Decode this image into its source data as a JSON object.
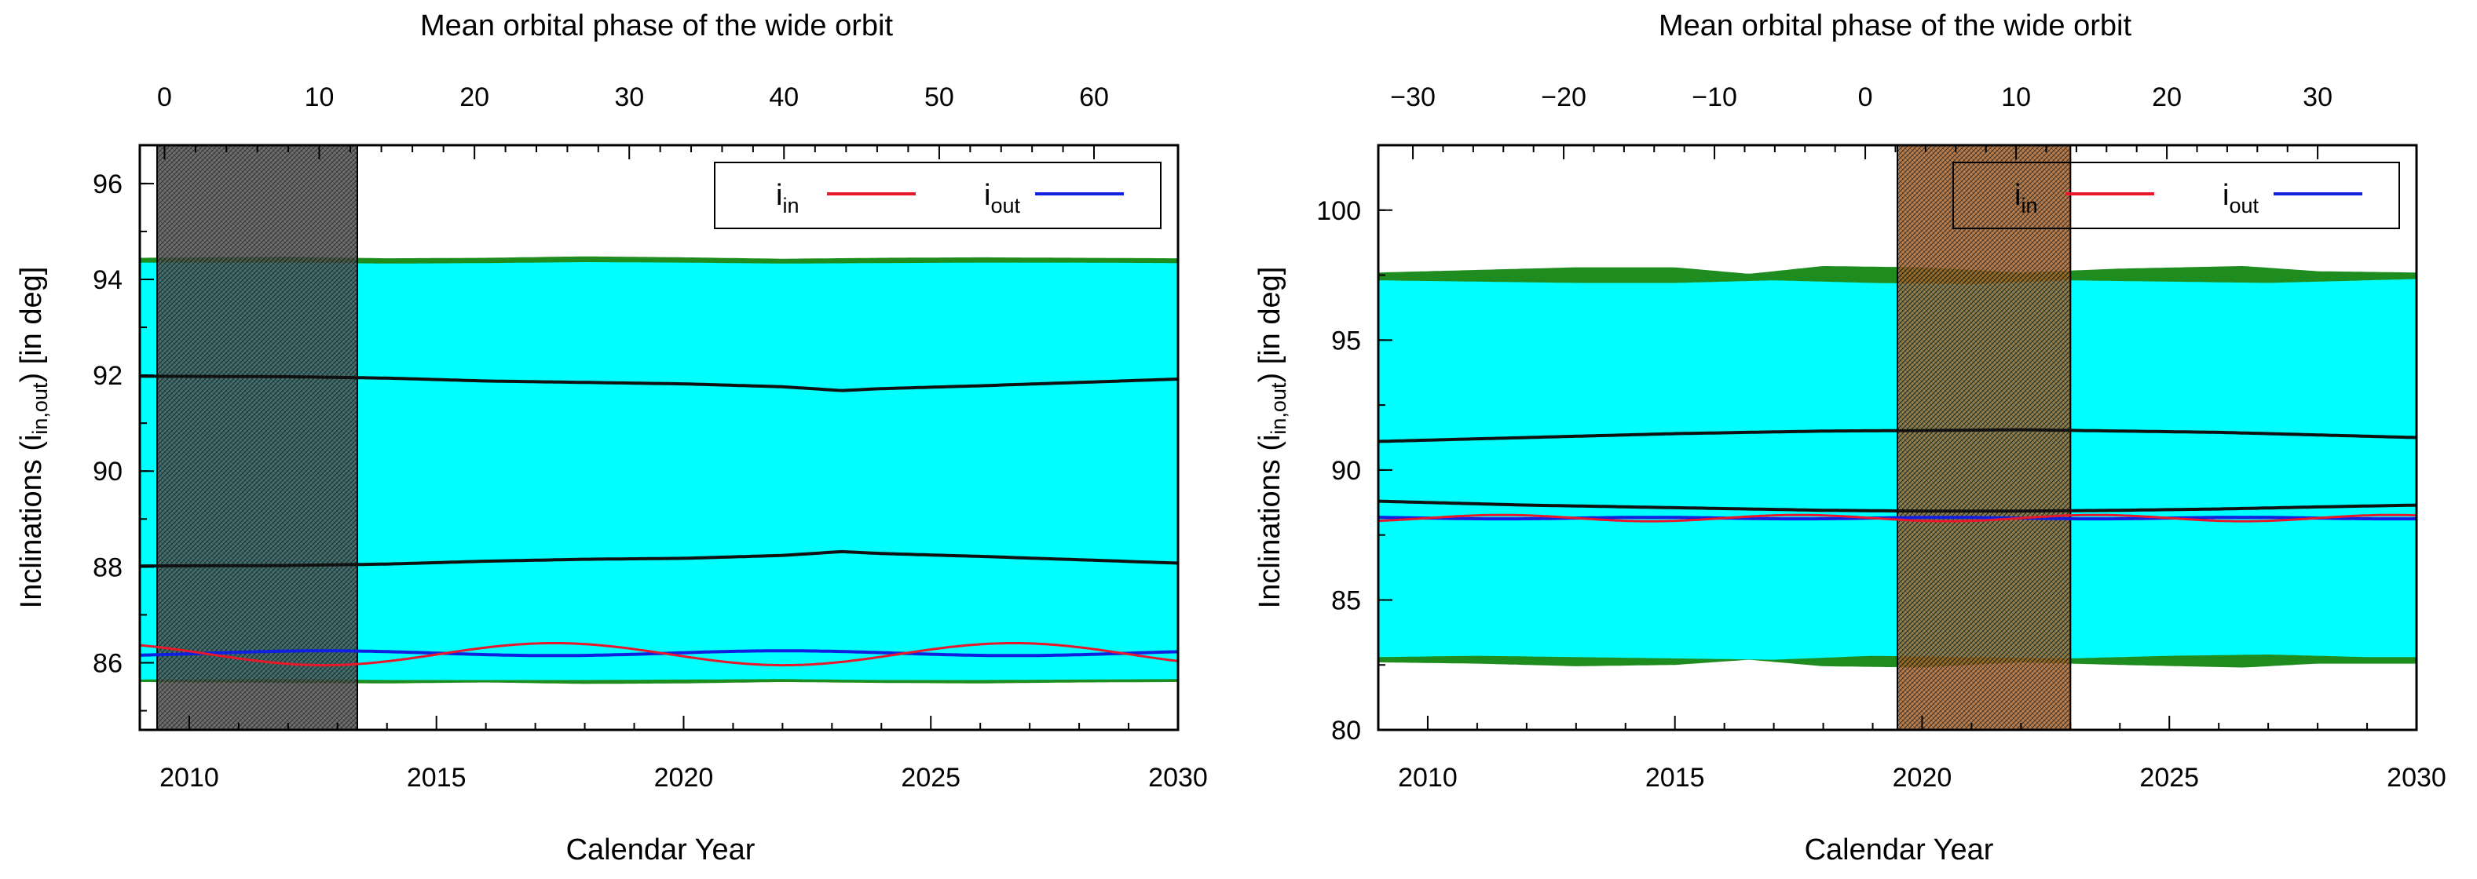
{
  "chart_data": [
    {
      "type": "area",
      "panel": "left",
      "top_axis_label": "Mean orbital phase of the wide orbit",
      "xlabel": "Calendar Year",
      "ylabel_main": "Inclinations (i",
      "ylabel_sub": "in,out",
      "ylabel_tail": ") [in deg]",
      "xlim": [
        2009,
        2030
      ],
      "ylim": [
        84.6,
        96.8
      ],
      "x_ticks": [
        2010,
        2015,
        2020,
        2025,
        2030
      ],
      "x_tick_labels": [
        "2010",
        "2015",
        "2020",
        "2025",
        "2030"
      ],
      "y_ticks": [
        86,
        88,
        90,
        92,
        94,
        96
      ],
      "y_tick_labels": [
        "86",
        "88",
        "90",
        "92",
        "94",
        "96"
      ],
      "top_ticks": [
        {
          "year": 2009.5,
          "label": "0"
        },
        {
          "year": 2012.63,
          "label": "10"
        },
        {
          "year": 2015.77,
          "label": "20"
        },
        {
          "year": 2018.9,
          "label": "30"
        },
        {
          "year": 2022.03,
          "label": "40"
        },
        {
          "year": 2025.17,
          "label": "50"
        },
        {
          "year": 2028.3,
          "label": "60"
        }
      ],
      "observed_span": [
        2009.35,
        2013.4
      ],
      "shade_color": "#555555",
      "legend": [
        {
          "main": "i",
          "sub": "in",
          "color": "#e8182a"
        },
        {
          "main": "i",
          "sub": "out",
          "color": "#1020e0"
        }
      ],
      "colors": {
        "band": "#00ffff",
        "band_edge": "#1e8c1e",
        "bounds": "#111111",
        "i_in": "#e8182a",
        "i_out": "#1020e0"
      },
      "series": [
        {
          "name": "band_upper",
          "x": [
            2009,
            2012,
            2014,
            2016,
            2018,
            2020,
            2022,
            2024,
            2026,
            2028,
            2030
          ],
          "values": [
            94.35,
            94.35,
            94.33,
            94.34,
            94.36,
            94.35,
            94.33,
            94.34,
            94.35,
            94.35,
            94.34
          ]
        },
        {
          "name": "band_upper_edge",
          "x": [
            2009,
            2012,
            2014,
            2016,
            2018,
            2020,
            2022,
            2024,
            2026,
            2028,
            2030
          ],
          "values": [
            94.45,
            94.47,
            94.44,
            94.45,
            94.48,
            94.46,
            94.43,
            94.45,
            94.46,
            94.45,
            94.44
          ]
        },
        {
          "name": "band_lower",
          "x": [
            2009,
            2012,
            2014,
            2016,
            2018,
            2020,
            2022,
            2024,
            2026,
            2028,
            2030
          ],
          "values": [
            85.65,
            85.66,
            85.64,
            85.64,
            85.64,
            85.65,
            85.66,
            85.64,
            85.64,
            85.65,
            85.66
          ]
        },
        {
          "name": "band_lower_edge",
          "x": [
            2009,
            2012,
            2014,
            2016,
            2018,
            2020,
            2022,
            2024,
            2026,
            2028,
            2030
          ],
          "values": [
            85.6,
            85.58,
            85.57,
            85.59,
            85.56,
            85.57,
            85.6,
            85.58,
            85.57,
            85.59,
            85.6
          ]
        },
        {
          "name": "bound_upper",
          "x": [
            2009,
            2012,
            2014,
            2016,
            2018,
            2020,
            2022,
            2023.2,
            2024,
            2026,
            2028,
            2030
          ],
          "values": [
            91.98,
            91.97,
            91.94,
            91.88,
            91.85,
            91.82,
            91.76,
            91.68,
            91.72,
            91.78,
            91.85,
            91.92
          ]
        },
        {
          "name": "bound_lower",
          "x": [
            2009,
            2012,
            2014,
            2016,
            2018,
            2020,
            2022,
            2023.2,
            2024,
            2026,
            2028,
            2030
          ],
          "values": [
            88.02,
            88.03,
            88.06,
            88.12,
            88.16,
            88.18,
            88.24,
            88.32,
            88.28,
            88.22,
            88.15,
            88.08
          ]
        },
        {
          "name": "i_in",
          "formula": {
            "base": 86.18,
            "amp": 0.23,
            "period": 9.3,
            "phase_year": 2010.4,
            "sign": -1
          }
        },
        {
          "name": "i_out",
          "formula": {
            "base": 86.2,
            "amp": 0.05,
            "period": 9.3,
            "phase_year": 2010.4,
            "sign": 1
          }
        }
      ]
    },
    {
      "type": "area",
      "panel": "right",
      "top_axis_label": "Mean orbital phase of the wide orbit",
      "xlabel": "Calendar Year",
      "ylabel_main": "Inclinations (i",
      "ylabel_sub": "in,out",
      "ylabel_tail": ") [in deg]",
      "xlim": [
        2009,
        2030
      ],
      "ylim": [
        80,
        102.5
      ],
      "x_ticks": [
        2010,
        2015,
        2020,
        2025,
        2030
      ],
      "x_tick_labels": [
        "2010",
        "2015",
        "2020",
        "2025",
        "2030"
      ],
      "y_ticks": [
        80,
        85,
        90,
        95,
        100
      ],
      "y_tick_labels": [
        "80",
        "85",
        "90",
        "95",
        "100"
      ],
      "top_ticks": [
        {
          "year": 2009.7,
          "label": "−30"
        },
        {
          "year": 2012.75,
          "label": "−20"
        },
        {
          "year": 2015.8,
          "label": "−10"
        },
        {
          "year": 2018.85,
          "label": "0"
        },
        {
          "year": 2021.9,
          "label": "10"
        },
        {
          "year": 2024.95,
          "label": "20"
        },
        {
          "year": 2028.0,
          "label": "30"
        }
      ],
      "observed_span": [
        2019.5,
        2023.0
      ],
      "shade_color": "#b0662a",
      "legend": [
        {
          "main": "i",
          "sub": "in",
          "color": "#e8182a"
        },
        {
          "main": "i",
          "sub": "out",
          "color": "#1020e0"
        }
      ],
      "colors": {
        "band": "#00ffff",
        "band_edge": "#1e8c1e",
        "bounds": "#111111",
        "i_in": "#e8182a",
        "i_out": "#1020e0"
      },
      "series": [
        {
          "name": "band_upper",
          "x": [
            2009,
            2011,
            2013,
            2015,
            2017,
            2019,
            2021,
            2023,
            2025,
            2027,
            2029,
            2030
          ],
          "values": [
            97.3,
            97.25,
            97.2,
            97.2,
            97.3,
            97.2,
            97.15,
            97.3,
            97.25,
            97.2,
            97.3,
            97.35
          ]
        },
        {
          "name": "band_upper_edge",
          "x": [
            2009,
            2011,
            2013,
            2015,
            2016.5,
            2018,
            2020,
            2022,
            2024,
            2026.5,
            2028,
            2030
          ],
          "values": [
            97.6,
            97.7,
            97.8,
            97.8,
            97.55,
            97.85,
            97.8,
            97.6,
            97.75,
            97.85,
            97.65,
            97.6
          ]
        },
        {
          "name": "band_lower",
          "x": [
            2009,
            2011,
            2013,
            2015,
            2017,
            2019,
            2021,
            2023,
            2025,
            2027,
            2029,
            2030
          ],
          "values": [
            82.8,
            82.85,
            82.8,
            82.75,
            82.7,
            82.85,
            82.8,
            82.75,
            82.85,
            82.9,
            82.8,
            82.8
          ]
        },
        {
          "name": "band_lower_edge",
          "x": [
            2009,
            2011,
            2013,
            2015,
            2016.5,
            2018,
            2020,
            2022,
            2024,
            2026.5,
            2028,
            2030
          ],
          "values": [
            82.6,
            82.55,
            82.45,
            82.5,
            82.7,
            82.45,
            82.4,
            82.6,
            82.5,
            82.4,
            82.55,
            82.55
          ]
        },
        {
          "name": "bound_upper",
          "x": [
            2009,
            2012,
            2015,
            2018,
            2020,
            2022,
            2024,
            2026,
            2028,
            2030
          ],
          "values": [
            91.1,
            91.25,
            91.4,
            91.5,
            91.52,
            91.55,
            91.5,
            91.45,
            91.35,
            91.25
          ]
        },
        {
          "name": "bound_lower",
          "x": [
            2009,
            2012,
            2015,
            2018,
            2020,
            2022,
            2024,
            2026,
            2028,
            2030
          ],
          "values": [
            88.8,
            88.65,
            88.55,
            88.45,
            88.42,
            88.42,
            88.45,
            88.5,
            88.58,
            88.65
          ]
        },
        {
          "name": "i_in",
          "formula": {
            "base": 88.15,
            "amp": 0.12,
            "period": 6.0,
            "phase_year": 2010.0,
            "sign": 1
          }
        },
        {
          "name": "i_out",
          "formula": {
            "base": 88.15,
            "amp": 0.03,
            "period": 6.0,
            "phase_year": 2010.0,
            "sign": -1
          }
        }
      ]
    }
  ]
}
